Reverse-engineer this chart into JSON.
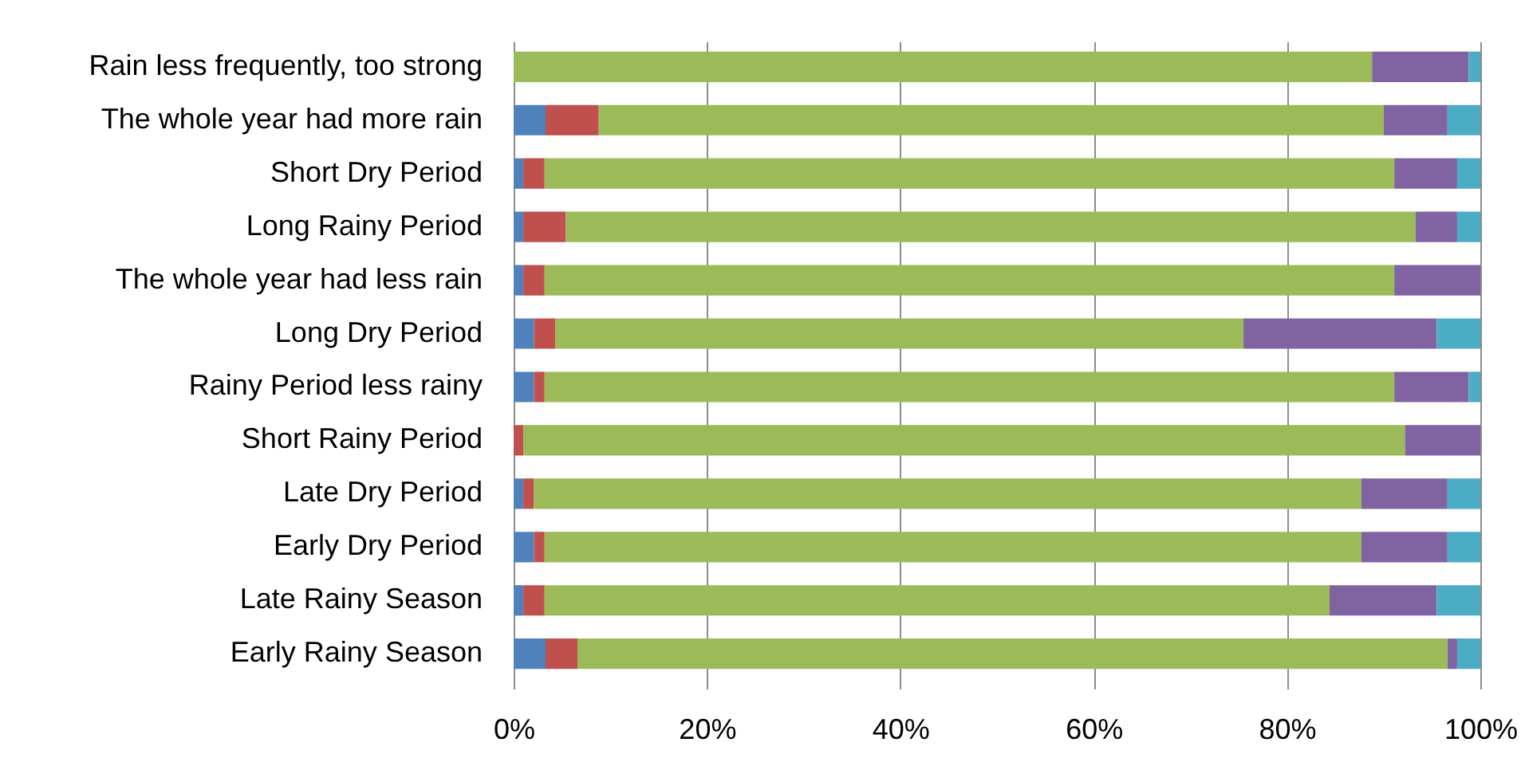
{
  "chart_data": {
    "type": "bar",
    "orientation": "horizontal",
    "stacked": true,
    "categories": [
      "Rain less frequently, too strong",
      "The whole year had more rain",
      "Short Dry Period",
      "Long Rainy Period",
      "The whole year had less rain",
      "Long Dry Period",
      "Rainy Period less rainy",
      "Short Rainy Period",
      "Late Dry Period",
      "Early Dry Period",
      "Late Rainy Season",
      "Early Rainy Season"
    ],
    "series": [
      {
        "color": "#4f81bd",
        "values": [
          null,
          3.3,
          1.0,
          1.0,
          1.0,
          2.1,
          2.1,
          null,
          1.0,
          2.1,
          1.0,
          3.3
        ]
      },
      {
        "color": "#c0504d",
        "values": [
          null,
          5.5,
          2.2,
          4.4,
          2.2,
          2.2,
          1.1,
          1.0,
          1.1,
          1.1,
          2.2,
          3.3
        ]
      },
      {
        "color": "#9bbb59",
        "values": [
          88.8,
          81.2,
          87.9,
          87.9,
          87.9,
          71.2,
          87.9,
          91.2,
          85.6,
          84.5,
          81.2,
          90.0
        ]
      },
      {
        "color": "#8064a2",
        "values": [
          10.0,
          6.6,
          6.5,
          4.3,
          8.9,
          20.0,
          7.7,
          7.8,
          8.9,
          8.9,
          11.1,
          1.0
        ]
      },
      {
        "color": "#4bacc6",
        "values": [
          1.2,
          3.4,
          2.4,
          2.4,
          null,
          4.5,
          1.2,
          null,
          3.4,
          3.4,
          4.5,
          2.4
        ]
      }
    ],
    "xlim": [
      0,
      100
    ],
    "xticks": [
      {
        "value": 0,
        "label": "0%"
      },
      {
        "value": 20,
        "label": "20%"
      },
      {
        "value": 40,
        "label": "40%"
      },
      {
        "value": 60,
        "label": "60%"
      },
      {
        "value": 80,
        "label": "80%"
      },
      {
        "value": 100,
        "label": "100%"
      }
    ],
    "grid": "x"
  }
}
